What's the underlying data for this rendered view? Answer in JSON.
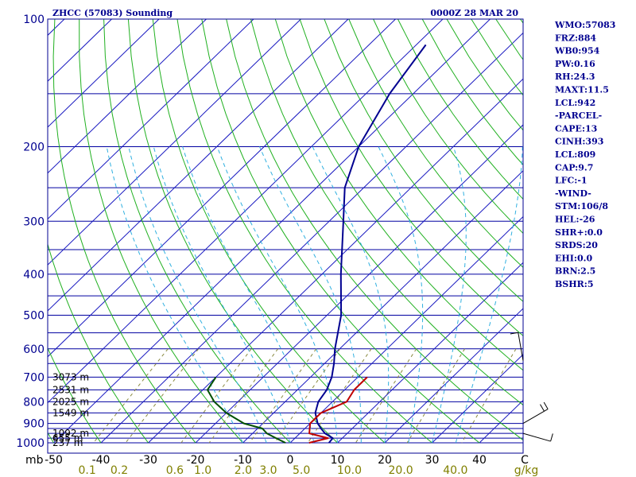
{
  "header": {
    "station": "ZHCC (57083) Sounding",
    "time": "0000Z 28 MAR 20"
  },
  "chart_data": {
    "type": "line",
    "title": "ZHCC (57083) Sounding",
    "subtitle": "0000Z 28 MAR 20",
    "xlabel": "",
    "ylabel": "mb",
    "x_unit_label": "C",
    "mixing_ratio_unit": "g/kg",
    "xlim": [
      -50,
      50
    ],
    "ylim": [
      1000,
      100
    ],
    "y_scale": "log",
    "x_ticks": [
      {
        "value": -50,
        "label": "-50"
      },
      {
        "value": -40,
        "label": "-40"
      },
      {
        "value": -30,
        "label": "-30"
      },
      {
        "value": -20,
        "label": "-20"
      },
      {
        "value": -10,
        "label": "-10"
      },
      {
        "value": 0,
        "label": "0"
      },
      {
        "value": 10,
        "label": "10"
      },
      {
        "value": 20,
        "label": "20"
      },
      {
        "value": 30,
        "label": "30"
      },
      {
        "value": 40,
        "label": "40"
      }
    ],
    "y_ticks": [
      {
        "value": 100,
        "label": "100"
      },
      {
        "value": 200,
        "label": "200"
      },
      {
        "value": 300,
        "label": "300"
      },
      {
        "value": 400,
        "label": "400"
      },
      {
        "value": 500,
        "label": "500"
      },
      {
        "value": 600,
        "label": "600"
      },
      {
        "value": 700,
        "label": "700"
      },
      {
        "value": 800,
        "label": "800"
      },
      {
        "value": 900,
        "label": "900"
      },
      {
        "value": 1000,
        "label": "1000"
      }
    ],
    "isobars": [
      100,
      150,
      200,
      250,
      300,
      350,
      400,
      450,
      500,
      550,
      600,
      650,
      700,
      750,
      800,
      850,
      900,
      925,
      950,
      975,
      1000
    ],
    "isotherms": [
      -150,
      -140,
      -130,
      -120,
      -110,
      -100,
      -90,
      -80,
      -70,
      -60,
      -50,
      -40,
      -30,
      -20,
      -10,
      0,
      10,
      20,
      30,
      40
    ],
    "dry_adiabats_c": [
      -50,
      -40,
      -30,
      -20,
      -10,
      0,
      10,
      20,
      30,
      40,
      50,
      60,
      70,
      80,
      90,
      100,
      110,
      120,
      130,
      140,
      150,
      160,
      170,
      180,
      190,
      200
    ],
    "moist_adiabats_c": [
      -10,
      -5,
      0,
      5,
      10,
      15,
      20,
      25,
      30,
      35
    ],
    "mixing_ratio_lines": [
      {
        "value": 0.1,
        "label": "0.1"
      },
      {
        "value": 0.2,
        "label": "0.2"
      },
      {
        "value": 0.6,
        "label": "0.6"
      },
      {
        "value": 1.0,
        "label": "1.0"
      },
      {
        "value": 2.0,
        "label": "2.0"
      },
      {
        "value": 3.0,
        "label": "3.0"
      },
      {
        "value": 5.0,
        "label": "5.0"
      },
      {
        "value": 10.0,
        "label": "10.0"
      },
      {
        "value": 20.0,
        "label": "20.0"
      },
      {
        "value": 40.0,
        "label": "40.0"
      }
    ],
    "height_labels": [
      {
        "p": 1000,
        "label": "237 m"
      },
      {
        "p": 975,
        "label": "655 m"
      },
      {
        "p": 950,
        "label": "1092 m"
      },
      {
        "p": 850,
        "label": "1549 m"
      },
      {
        "p": 800,
        "label": "2025 m"
      },
      {
        "p": 750,
        "label": "2531 m"
      },
      {
        "p": 700,
        "label": "3073 m"
      }
    ],
    "series": [
      {
        "role": "temperature",
        "color": "#000090",
        "points": [
          {
            "p": 1000,
            "t": 8.2
          },
          {
            "p": 975,
            "t": 8.0
          },
          {
            "p": 950,
            "t": 5.3
          },
          {
            "p": 925,
            "t": 3.4
          },
          {
            "p": 900,
            "t": 1.6
          },
          {
            "p": 850,
            "t": -1.2
          },
          {
            "p": 800,
            "t": -3.0
          },
          {
            "p": 750,
            "t": -3.8
          },
          {
            "p": 700,
            "t": -5.5
          },
          {
            "p": 650,
            "t": -8.0
          },
          {
            "p": 600,
            "t": -11.0
          },
          {
            "p": 500,
            "t": -17.0
          },
          {
            "p": 400,
            "t": -26.0
          },
          {
            "p": 300,
            "t": -37.0
          },
          {
            "p": 250,
            "t": -44.0
          },
          {
            "p": 200,
            "t": -50.0
          },
          {
            "p": 150,
            "t": -55.0
          },
          {
            "p": 115,
            "t": -58.0
          }
        ]
      },
      {
        "role": "dewpoint",
        "color": "#005000",
        "points": [
          {
            "p": 1000,
            "t": -1.0
          },
          {
            "p": 975,
            "t": -4.0
          },
          {
            "p": 950,
            "t": -7.0
          },
          {
            "p": 925,
            "t": -9.0
          },
          {
            "p": 900,
            "t": -14.0
          },
          {
            "p": 850,
            "t": -20.0
          },
          {
            "p": 800,
            "t": -25.0
          },
          {
            "p": 750,
            "t": -29.0
          },
          {
            "p": 700,
            "t": -30.0
          }
        ]
      },
      {
        "role": "wet-bulb",
        "color": "#c00000",
        "points": [
          {
            "p": 1000,
            "t": 4.0
          },
          {
            "p": 975,
            "t": 7.0
          },
          {
            "p": 950,
            "t": 2.0
          },
          {
            "p": 900,
            "t": 0.0
          },
          {
            "p": 850,
            "t": 0.0
          },
          {
            "p": 800,
            "t": 3.0
          },
          {
            "p": 750,
            "t": 2.0
          },
          {
            "p": 700,
            "t": 2.0
          }
        ]
      }
    ],
    "wind_barbs": [
      {
        "p": 950,
        "dir": 106,
        "spd": 8
      },
      {
        "p": 900,
        "dir": 60,
        "spd": 10
      },
      {
        "p": 640,
        "dir": 350,
        "spd": 5
      }
    ]
  },
  "indices": [
    "WMO:57083",
    "FRZ:884",
    "WB0:954",
    "PW:0.16",
    "RH:24.3",
    "MAXT:11.5",
    "LCL:942",
    "-PARCEL-",
    "CAPE:13",
    "CINH:393",
    "LCL:809",
    "CAP:9.7",
    "LFC:-1",
    "-WIND-",
    "STM:106/8",
    "HEL:-26",
    "SHR+:0.0",
    "SRDS:20",
    "EHI:0.0",
    "BRN:2.5",
    "BSHR:5"
  ]
}
